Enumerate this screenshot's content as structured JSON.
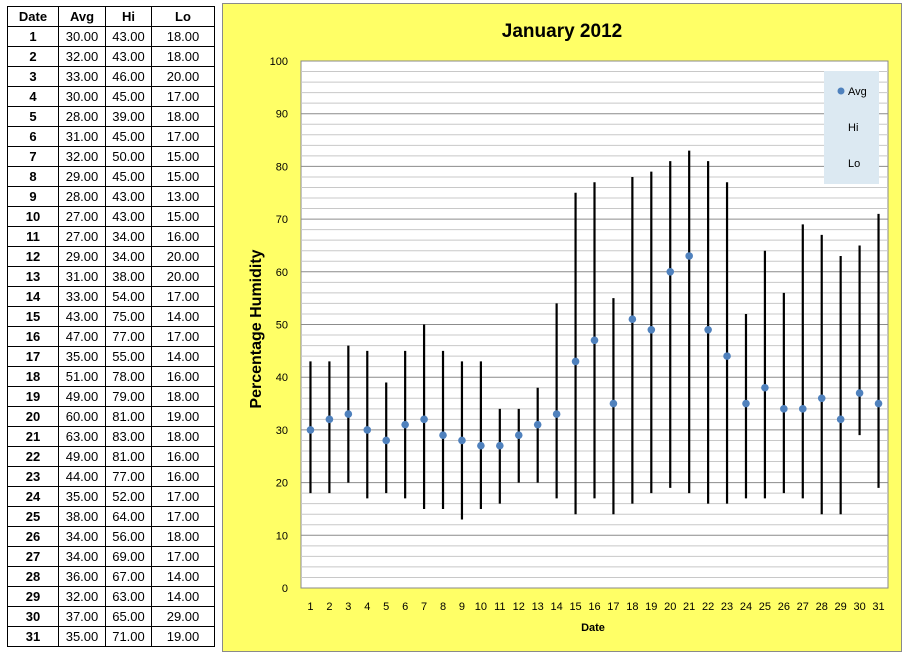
{
  "table": {
    "headers": [
      "Date",
      "Avg",
      "Hi",
      "Lo"
    ],
    "rows": [
      [
        "1",
        "30.00",
        "43.00",
        "18.00"
      ],
      [
        "2",
        "32.00",
        "43.00",
        "18.00"
      ],
      [
        "3",
        "33.00",
        "46.00",
        "20.00"
      ],
      [
        "4",
        "30.00",
        "45.00",
        "17.00"
      ],
      [
        "5",
        "28.00",
        "39.00",
        "18.00"
      ],
      [
        "6",
        "31.00",
        "45.00",
        "17.00"
      ],
      [
        "7",
        "32.00",
        "50.00",
        "15.00"
      ],
      [
        "8",
        "29.00",
        "45.00",
        "15.00"
      ],
      [
        "9",
        "28.00",
        "43.00",
        "13.00"
      ],
      [
        "10",
        "27.00",
        "43.00",
        "15.00"
      ],
      [
        "11",
        "27.00",
        "34.00",
        "16.00"
      ],
      [
        "12",
        "29.00",
        "34.00",
        "20.00"
      ],
      [
        "13",
        "31.00",
        "38.00",
        "20.00"
      ],
      [
        "14",
        "33.00",
        "54.00",
        "17.00"
      ],
      [
        "15",
        "43.00",
        "75.00",
        "14.00"
      ],
      [
        "16",
        "47.00",
        "77.00",
        "17.00"
      ],
      [
        "17",
        "35.00",
        "55.00",
        "14.00"
      ],
      [
        "18",
        "51.00",
        "78.00",
        "16.00"
      ],
      [
        "19",
        "49.00",
        "79.00",
        "18.00"
      ],
      [
        "20",
        "60.00",
        "81.00",
        "19.00"
      ],
      [
        "21",
        "63.00",
        "83.00",
        "18.00"
      ],
      [
        "22",
        "49.00",
        "81.00",
        "16.00"
      ],
      [
        "23",
        "44.00",
        "77.00",
        "16.00"
      ],
      [
        "24",
        "35.00",
        "52.00",
        "17.00"
      ],
      [
        "25",
        "38.00",
        "64.00",
        "17.00"
      ],
      [
        "26",
        "34.00",
        "56.00",
        "18.00"
      ],
      [
        "27",
        "34.00",
        "69.00",
        "17.00"
      ],
      [
        "28",
        "36.00",
        "67.00",
        "14.00"
      ],
      [
        "29",
        "32.00",
        "63.00",
        "14.00"
      ],
      [
        "30",
        "37.00",
        "65.00",
        "29.00"
      ],
      [
        "31",
        "35.00",
        "71.00",
        "19.00"
      ]
    ]
  },
  "chart_data": {
    "type": "scatter",
    "title": "January 2012",
    "xlabel": "Date",
    "ylabel": "Percentage Humidity",
    "ylim": [
      0,
      100
    ],
    "ytick_step": 10,
    "minor_grid_step": 2,
    "grid": true,
    "background": "#ffff66",
    "plot_background": "#ffffff",
    "legend_position": "top-right",
    "x": [
      1,
      2,
      3,
      4,
      5,
      6,
      7,
      8,
      9,
      10,
      11,
      12,
      13,
      14,
      15,
      16,
      17,
      18,
      19,
      20,
      21,
      22,
      23,
      24,
      25,
      26,
      27,
      28,
      29,
      30,
      31
    ],
    "series": [
      {
        "name": "Avg",
        "marker": "circle",
        "color": "#4f81bd",
        "values": [
          30,
          32,
          33,
          30,
          28,
          31,
          32,
          29,
          28,
          27,
          27,
          29,
          31,
          33,
          43,
          47,
          35,
          51,
          49,
          60,
          63,
          49,
          44,
          35,
          38,
          34,
          34,
          36,
          32,
          37,
          35
        ]
      },
      {
        "name": "Hi",
        "marker": "none",
        "color": "#000000",
        "values": [
          43,
          43,
          46,
          45,
          39,
          45,
          50,
          45,
          43,
          43,
          34,
          34,
          38,
          54,
          75,
          77,
          55,
          78,
          79,
          81,
          83,
          81,
          77,
          52,
          64,
          56,
          69,
          67,
          63,
          65,
          71
        ]
      },
      {
        "name": "Lo",
        "marker": "none",
        "color": "#000000",
        "values": [
          18,
          18,
          20,
          17,
          18,
          17,
          15,
          15,
          13,
          15,
          16,
          20,
          20,
          17,
          14,
          17,
          14,
          16,
          18,
          19,
          18,
          16,
          16,
          17,
          17,
          18,
          17,
          14,
          14,
          29,
          19
        ]
      }
    ]
  }
}
